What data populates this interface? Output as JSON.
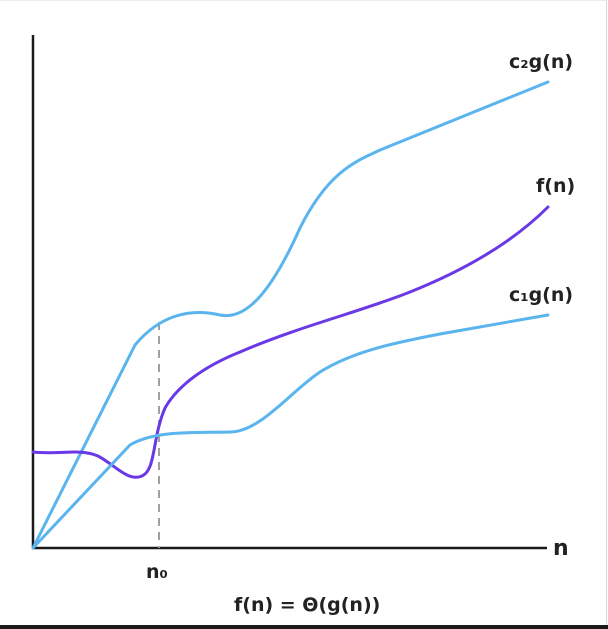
{
  "diagram": {
    "curves": {
      "upper": {
        "label": "c₂g(n)",
        "color": "#5ab4ee"
      },
      "function": {
        "label": "f(n)",
        "color": "#6a38e6"
      },
      "lower": {
        "label": "c₁g(n)",
        "color": "#5ab4ee"
      }
    },
    "axes": {
      "x_label": "n",
      "threshold_label": "n₀",
      "axis_color": "#1a1a1a",
      "threshold_color": "#a0a0a0"
    },
    "caption": "f(n) = Θ(g(n))"
  }
}
